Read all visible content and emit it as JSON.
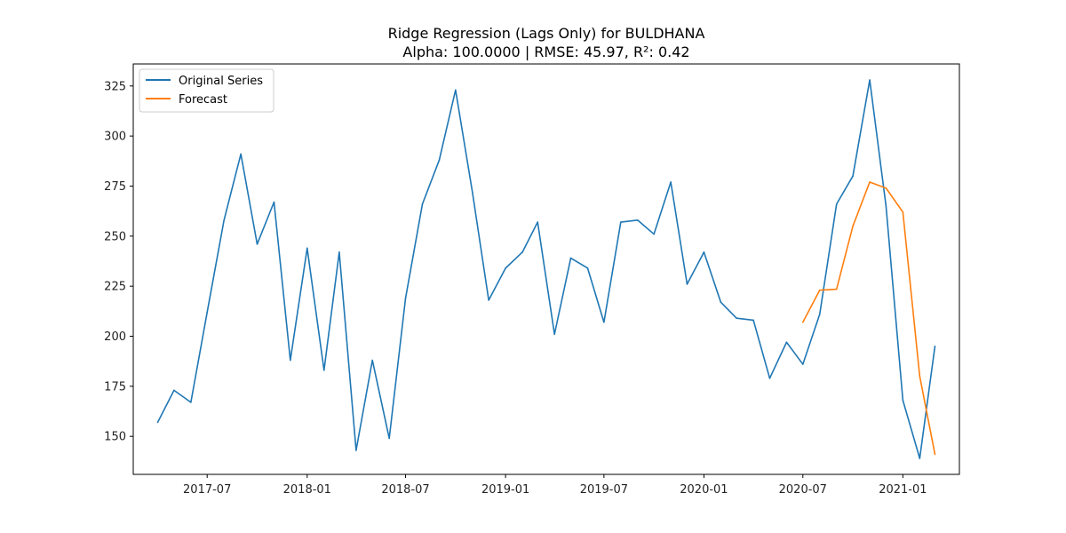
{
  "chart_data": {
    "type": "line",
    "title": "Ridge Regression (Lags Only) for BULDHANA",
    "subtitle": "Alpha: 100.0000 | RMSE: 45.97, R²: 0.42",
    "xlabel": "",
    "ylabel": "",
    "xlim": [
      "2017-02-15",
      "2021-04-15"
    ],
    "ylim": [
      131,
      336
    ],
    "x_ticks": [
      {
        "date": "2017-07-01",
        "label": "2017-07"
      },
      {
        "date": "2018-01-01",
        "label": "2018-01"
      },
      {
        "date": "2018-07-01",
        "label": "2018-07"
      },
      {
        "date": "2019-01-01",
        "label": "2019-01"
      },
      {
        "date": "2019-07-01",
        "label": "2019-07"
      },
      {
        "date": "2020-01-01",
        "label": "2020-01"
      },
      {
        "date": "2020-07-01",
        "label": "2020-07"
      },
      {
        "date": "2021-01-01",
        "label": "2021-01"
      }
    ],
    "y_ticks": [
      150,
      175,
      200,
      225,
      250,
      275,
      300,
      325
    ],
    "grid": false,
    "legend_position": "top-left",
    "series": [
      {
        "name": "Original Series",
        "color": "#1f77b4",
        "points": [
          [
            "2017-04-01",
            157
          ],
          [
            "2017-05-01",
            173
          ],
          [
            "2017-06-01",
            167
          ],
          [
            "2017-07-01",
            212
          ],
          [
            "2017-08-01",
            258
          ],
          [
            "2017-09-01",
            291
          ],
          [
            "2017-10-01",
            246
          ],
          [
            "2017-11-01",
            267
          ],
          [
            "2017-12-01",
            188
          ],
          [
            "2018-01-01",
            244
          ],
          [
            "2018-02-01",
            183
          ],
          [
            "2018-03-01",
            242
          ],
          [
            "2018-04-01",
            143
          ],
          [
            "2018-05-01",
            188
          ],
          [
            "2018-06-01",
            149
          ],
          [
            "2018-07-01",
            219
          ],
          [
            "2018-08-01",
            266
          ],
          [
            "2018-09-01",
            288
          ],
          [
            "2018-10-01",
            323
          ],
          [
            "2018-11-01",
            272
          ],
          [
            "2018-12-01",
            218
          ],
          [
            "2019-01-01",
            234
          ],
          [
            "2019-02-01",
            242
          ],
          [
            "2019-03-01",
            257
          ],
          [
            "2019-04-01",
            201
          ],
          [
            "2019-05-01",
            239
          ],
          [
            "2019-06-01",
            234
          ],
          [
            "2019-07-01",
            207
          ],
          [
            "2019-08-01",
            257
          ],
          [
            "2019-09-01",
            258
          ],
          [
            "2019-10-01",
            251
          ],
          [
            "2019-11-01",
            277
          ],
          [
            "2019-12-01",
            226
          ],
          [
            "2020-01-01",
            242
          ],
          [
            "2020-02-01",
            217
          ],
          [
            "2020-03-01",
            209
          ],
          [
            "2020-04-01",
            208
          ],
          [
            "2020-05-01",
            179
          ],
          [
            "2020-06-01",
            197
          ],
          [
            "2020-07-01",
            186
          ],
          [
            "2020-08-01",
            211
          ],
          [
            "2020-09-01",
            266
          ],
          [
            "2020-10-01",
            280
          ],
          [
            "2020-11-01",
            328
          ],
          [
            "2020-12-01",
            265
          ],
          [
            "2021-01-01",
            168
          ],
          [
            "2021-02-01",
            139
          ],
          [
            "2021-03-01",
            195
          ]
        ]
      },
      {
        "name": "Forecast",
        "color": "#ff7f0e",
        "points": [
          [
            "2020-07-01",
            207
          ],
          [
            "2020-08-01",
            223
          ],
          [
            "2020-09-01",
            223.5
          ],
          [
            "2020-10-01",
            255
          ],
          [
            "2020-11-01",
            277
          ],
          [
            "2020-12-01",
            274
          ],
          [
            "2021-01-01",
            262
          ],
          [
            "2021-02-01",
            180
          ],
          [
            "2021-03-01",
            141
          ]
        ]
      }
    ]
  }
}
